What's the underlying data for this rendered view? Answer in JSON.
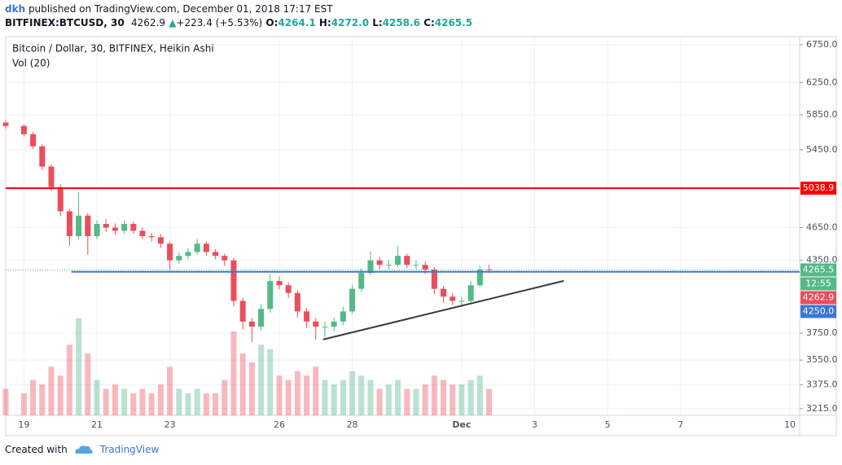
{
  "header": {
    "author": "dkh",
    "published": " published on TradingView.com, December 01, 2018 17:17 EST",
    "symbol": "BITFINEX:BTCUSD, 30",
    "price": "4262.9",
    "arrow": "▲",
    "change": "+223.4 (+5.53%)",
    "o_label": "O:",
    "o": "4264.1",
    "h_label": "H:",
    "h": "4272.0",
    "l_label": "L:",
    "l": "4258.6",
    "c_label": "C:",
    "c": "4265.5"
  },
  "chart_data": {
    "type": "candlestick",
    "title": "Bitcoin / Dollar, 30, BITFINEX, Heikin Ashi",
    "subtitle": "Vol (20)",
    "log_scale": true,
    "grid": true,
    "up_color": "#53b987",
    "down_color": "#eb4d5c",
    "x": [
      -0.5,
      0,
      0.25,
      0.5,
      0.75,
      1,
      1.25,
      1.5,
      1.75,
      2,
      2.25,
      2.5,
      2.75,
      3,
      3.25,
      3.5,
      3.75,
      4,
      4.25,
      4.5,
      4.75,
      5,
      5.25,
      5.5,
      5.75,
      6,
      6.25,
      6.5,
      6.75,
      7,
      7.25,
      7.5,
      7.75,
      8,
      8.25,
      8.5,
      8.75,
      9,
      9.25,
      9.5,
      9.75,
      10,
      10.25,
      10.5,
      10.75,
      11,
      11.25,
      11.5,
      11.75,
      12,
      12.25,
      12.5,
      12.75
    ],
    "open": [
      5760,
      5720,
      5625,
      5488,
      5265,
      5050,
      4807,
      4570,
      4765,
      4570,
      4685,
      4650,
      4620,
      4685,
      4620,
      4570,
      4560,
      4500,
      4350,
      4390,
      4425,
      4500,
      4425,
      4390,
      4350,
      4005,
      3840,
      3800,
      3940,
      4170,
      4135,
      4070,
      3920,
      3840,
      3800,
      3800,
      3840,
      3920,
      4105,
      4240,
      4350,
      4310,
      4310,
      4390,
      4310,
      4310,
      4270,
      4105,
      4040,
      4005,
      4005,
      4135,
      4270
    ],
    "high": [
      5790,
      5740,
      5650,
      5510,
      5290,
      5080,
      4830,
      5000,
      4790,
      4720,
      4730,
      4690,
      4720,
      4710,
      4650,
      4600,
      4590,
      4520,
      4420,
      4460,
      4540,
      4520,
      4450,
      4410,
      4370,
      4030,
      3870,
      3980,
      4230,
      4210,
      4160,
      4090,
      3950,
      3870,
      3840,
      3870,
      3960,
      4140,
      4280,
      4430,
      4380,
      4350,
      4480,
      4410,
      4350,
      4340,
      4290,
      4130,
      4070,
      4040,
      4170,
      4300,
      4310
    ],
    "low": [
      5690,
      5600,
      5460,
      5230,
      5010,
      4760,
      4480,
      4540,
      4400,
      4540,
      4610,
      4580,
      4590,
      4590,
      4540,
      4520,
      4460,
      4250,
      4320,
      4360,
      4400,
      4390,
      4360,
      4300,
      3960,
      3780,
      3680,
      3770,
      3910,
      4100,
      4030,
      3870,
      3790,
      3700,
      3720,
      3760,
      3810,
      3900,
      4080,
      4220,
      4270,
      4270,
      4290,
      4280,
      4270,
      4230,
      4060,
      3990,
      3970,
      3970,
      3990,
      4120,
      4240
    ],
    "close": [
      5720,
      5625,
      5488,
      5265,
      5050,
      4807,
      4570,
      4765,
      4570,
      4685,
      4650,
      4620,
      4685,
      4620,
      4570,
      4560,
      4500,
      4350,
      4390,
      4425,
      4500,
      4425,
      4390,
      4350,
      4005,
      3840,
      3800,
      3940,
      4170,
      4135,
      4070,
      3920,
      3840,
      3800,
      3800,
      3840,
      3920,
      4105,
      4240,
      4350,
      4310,
      4310,
      4390,
      4310,
      4310,
      4270,
      4105,
      4040,
      4005,
      4005,
      4135,
      4270,
      4265
    ],
    "volume": [
      30,
      25,
      40,
      35,
      55,
      45,
      80,
      110,
      70,
      40,
      30,
      35,
      30,
      25,
      30,
      25,
      35,
      55,
      30,
      25,
      30,
      25,
      25,
      40,
      95,
      70,
      60,
      80,
      75,
      45,
      40,
      50,
      45,
      55,
      40,
      35,
      40,
      50,
      45,
      40,
      30,
      35,
      40,
      30,
      30,
      35,
      45,
      40,
      35,
      35,
      40,
      45,
      30
    ],
    "volume_lim": [
      0,
      120
    ],
    "xlim": [
      -0.5,
      21.265
    ],
    "ylim": [
      3172,
      6862
    ],
    "xticks": [
      {
        "value": 0,
        "label": "19"
      },
      {
        "value": 2,
        "label": "21"
      },
      {
        "value": 4,
        "label": "23"
      },
      {
        "value": 7,
        "label": "26"
      },
      {
        "value": 9,
        "label": "28"
      },
      {
        "value": 12,
        "label": "Dec"
      },
      {
        "value": 14,
        "label": "3"
      },
      {
        "value": 16,
        "label": "5"
      },
      {
        "value": 18,
        "label": "7"
      },
      {
        "value": 21,
        "label": "10"
      }
    ],
    "yticks": [
      {
        "value": 6750,
        "label": "6750.0"
      },
      {
        "value": 6250,
        "label": "6250.0"
      },
      {
        "value": 5850,
        "label": "5850.0"
      },
      {
        "value": 5450,
        "label": "5450.0"
      },
      {
        "value": 4650,
        "label": "4650.0"
      },
      {
        "value": 4350,
        "label": "4350.0"
      },
      {
        "value": 3750,
        "label": "3750.0"
      },
      {
        "value": 3550,
        "label": "3550.0"
      },
      {
        "value": 3375,
        "label": "3375.0"
      },
      {
        "value": 3215,
        "label": "3215.0"
      }
    ],
    "hlines": [
      {
        "value": 5038.9,
        "color": "#ff0000",
        "from": -0.5
      },
      {
        "value": 4250,
        "color": "#3a76d6",
        "from": 1.3
      }
    ],
    "last_line": {
      "value": 4265.5,
      "color": "#53b987"
    },
    "trend_line": {
      "x": [
        8.2,
        14.8
      ],
      "y": [
        3702,
        4172
      ],
      "color": "#363a45"
    },
    "price_labels": [
      {
        "value": 5038.9,
        "color": "#ff0000"
      },
      {
        "value": 4265.5,
        "color": "#53b987"
      },
      {
        "label": "12:55",
        "color": "#53b987"
      },
      {
        "value": 4262.9,
        "color": "#eb4d5c"
      },
      {
        "value": 4250,
        "label": "4250.0",
        "color": "#3a76d6"
      }
    ]
  },
  "footer": {
    "created": "Created with",
    "brand": "TradingView"
  }
}
